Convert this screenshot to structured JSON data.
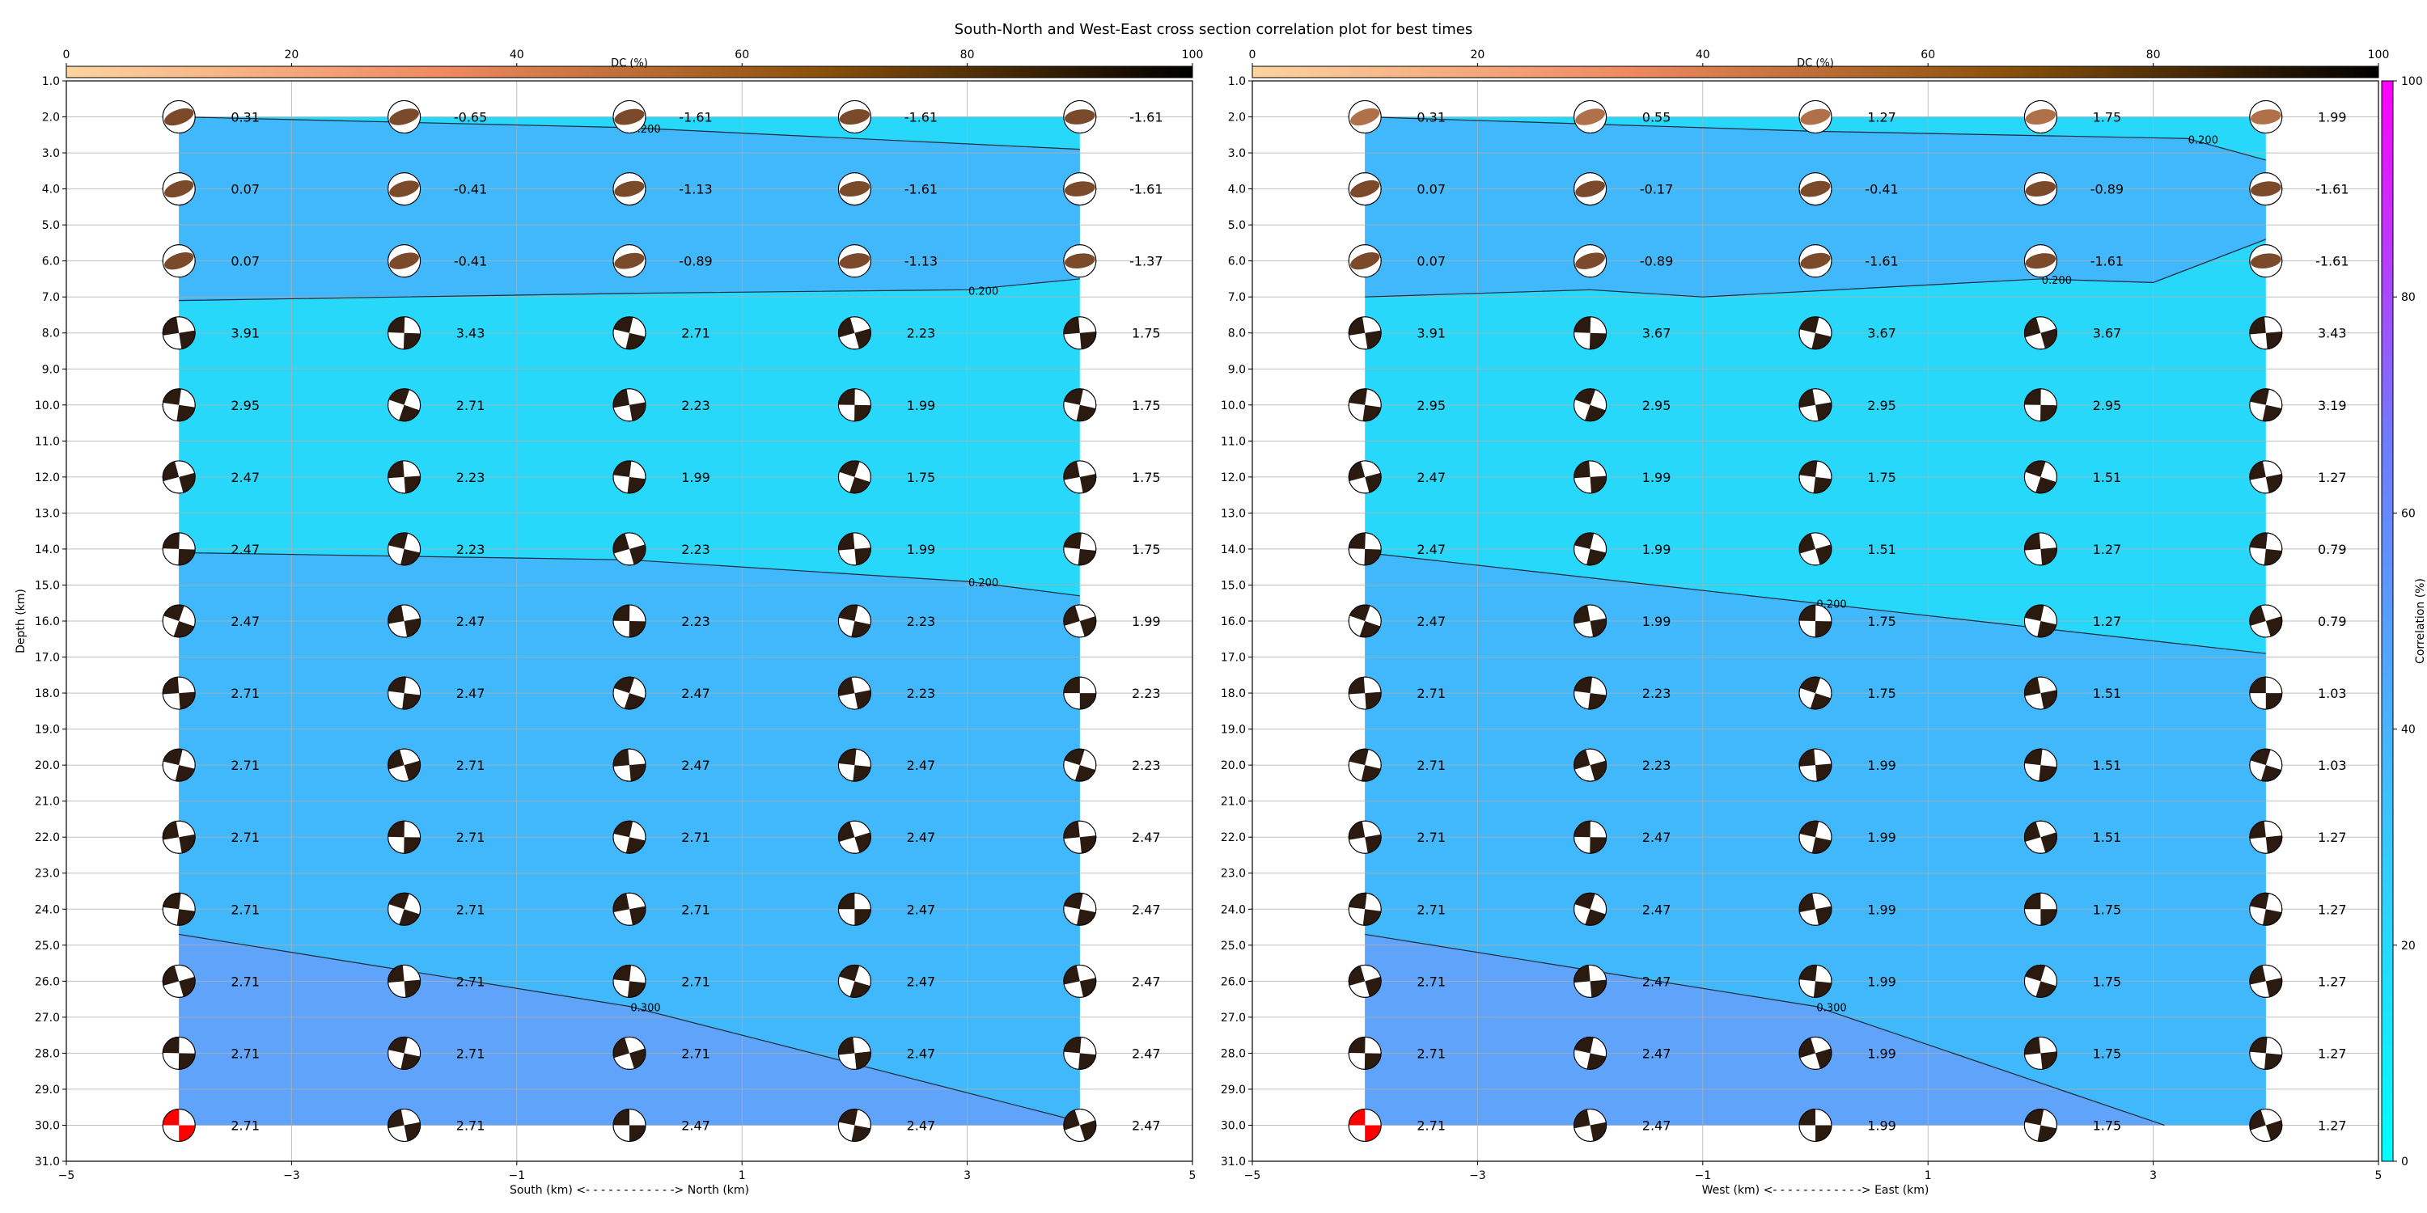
{
  "title": "South-North and West-East cross section correlation plot for best times",
  "dc_colorbar": {
    "label": "DC (%)",
    "ticks": [
      "0",
      "20",
      "40",
      "60",
      "80",
      "100"
    ],
    "colors": [
      "#fdd49e",
      "#ef8a62",
      "#8c510a",
      "#000000"
    ]
  },
  "corr_colorbar": {
    "label": "Correlation (%)",
    "ticks": [
      "0",
      "20",
      "40",
      "60",
      "80",
      "100"
    ],
    "colors": [
      "#00ffff",
      "#3ec1ff",
      "#6f7bff",
      "#ff00ff"
    ]
  },
  "chart_data": [
    {
      "type": "heatmap",
      "xlabel": "South (km) <- - - - - - - - - - - -> North (km)",
      "ylabel": "Depth (km)",
      "xlim": [
        -5,
        5
      ],
      "ylim": [
        31,
        1
      ],
      "x_ticks": [
        "−5",
        "−3",
        "−1",
        "1",
        "3",
        "5"
      ],
      "x_positions": [
        -4,
        -2,
        0,
        2,
        4
      ],
      "depths": [
        2,
        4,
        6,
        8,
        10,
        12,
        14,
        16,
        18,
        20,
        22,
        24,
        26,
        28,
        30
      ],
      "values": [
        [
          "0.31",
          "-0.65",
          "-1.61",
          "-1.61",
          "-1.61"
        ],
        [
          "0.07",
          "-0.41",
          "-1.13",
          "-1.61",
          "-1.61"
        ],
        [
          "0.07",
          "-0.41",
          "-0.89",
          "-1.13",
          "-1.37"
        ],
        [
          "3.91",
          "3.43",
          "2.71",
          "2.23",
          "1.75"
        ],
        [
          "2.95",
          "2.71",
          "2.23",
          "1.99",
          "1.75"
        ],
        [
          "2.47",
          "2.23",
          "1.99",
          "1.75",
          "1.75"
        ],
        [
          "2.47",
          "2.23",
          "2.23",
          "1.99",
          "1.75"
        ],
        [
          "2.47",
          "2.47",
          "2.23",
          "2.23",
          "1.99"
        ],
        [
          "2.71",
          "2.47",
          "2.47",
          "2.23",
          "2.23"
        ],
        [
          "2.71",
          "2.71",
          "2.47",
          "2.47",
          "2.23"
        ],
        [
          "2.71",
          "2.71",
          "2.71",
          "2.47",
          "2.47"
        ],
        [
          "2.71",
          "2.71",
          "2.71",
          "2.47",
          "2.47"
        ],
        [
          "2.71",
          "2.71",
          "2.71",
          "2.47",
          "2.47"
        ],
        [
          "2.71",
          "2.71",
          "2.71",
          "2.47",
          "2.47"
        ],
        [
          "2.71",
          "2.71",
          "2.47",
          "2.47",
          "2.47"
        ]
      ],
      "contours": [
        {
          "label": "0.200",
          "line": [
            [
              -4,
              2.0
            ],
            [
              0,
              2.3
            ],
            [
              4,
              2.9
            ]
          ]
        },
        {
          "label": "0.200",
          "line": [
            [
              -4,
              7.1
            ],
            [
              0,
              6.9
            ],
            [
              3,
              6.8
            ],
            [
              4,
              6.5
            ]
          ]
        },
        {
          "label": "0.200",
          "line": [
            [
              -4,
              14.1
            ],
            [
              0,
              14.3
            ],
            [
              3,
              14.9
            ],
            [
              4,
              15.3
            ]
          ]
        },
        {
          "label": "0.300",
          "line": [
            [
              -4,
              24.7
            ],
            [
              0,
              26.7
            ],
            [
              4,
              29.9
            ]
          ]
        }
      ],
      "best_marker": [
        0,
        14
      ]
    },
    {
      "type": "heatmap",
      "xlabel": "West (km) <- - - - - - - - - - - -> East (km)",
      "ylabel": "",
      "xlim": [
        -5,
        5
      ],
      "ylim": [
        31,
        1
      ],
      "x_ticks": [
        "−5",
        "−3",
        "−1",
        "1",
        "3",
        "5"
      ],
      "x_positions": [
        -4,
        -2,
        0,
        2,
        4
      ],
      "depths": [
        2,
        4,
        6,
        8,
        10,
        12,
        14,
        16,
        18,
        20,
        22,
        24,
        26,
        28,
        30
      ],
      "values": [
        [
          "0.31",
          "0.55",
          "1.27",
          "1.75",
          "1.99"
        ],
        [
          "0.07",
          "-0.17",
          "-0.41",
          "-0.89",
          "-1.61"
        ],
        [
          "0.07",
          "-0.89",
          "-1.61",
          "-1.61",
          "-1.61"
        ],
        [
          "3.91",
          "3.67",
          "3.67",
          "3.67",
          "3.43"
        ],
        [
          "2.95",
          "2.95",
          "2.95",
          "2.95",
          "3.19"
        ],
        [
          "2.47",
          "1.99",
          "1.75",
          "1.51",
          "1.27"
        ],
        [
          "2.47",
          "1.99",
          "1.51",
          "1.27",
          "0.79"
        ],
        [
          "2.47",
          "1.99",
          "1.75",
          "1.27",
          "0.79"
        ],
        [
          "2.71",
          "2.23",
          "1.75",
          "1.51",
          "1.03"
        ],
        [
          "2.71",
          "2.23",
          "1.99",
          "1.51",
          "1.03"
        ],
        [
          "2.71",
          "2.47",
          "1.99",
          "1.51",
          "1.27"
        ],
        [
          "2.71",
          "2.47",
          "1.99",
          "1.75",
          "1.27"
        ],
        [
          "2.71",
          "2.47",
          "1.99",
          "1.75",
          "1.27"
        ],
        [
          "2.71",
          "2.47",
          "1.99",
          "1.75",
          "1.27"
        ],
        [
          "2.71",
          "2.47",
          "1.99",
          "1.75",
          "1.27"
        ]
      ],
      "contours": [
        {
          "label": "0.200",
          "line": [
            [
              -4,
              2.0
            ],
            [
              0,
              2.4
            ],
            [
              3.3,
              2.6
            ],
            [
              4,
              3.2
            ]
          ]
        },
        {
          "label": "0.200",
          "line": [
            [
              -4,
              7.0
            ],
            [
              -2,
              6.8
            ],
            [
              -1,
              7.0
            ],
            [
              2,
              6.5
            ],
            [
              3,
              6.6
            ],
            [
              4,
              5.4
            ]
          ]
        },
        {
          "label": "0.200",
          "line": [
            [
              -4,
              14.1
            ],
            [
              0,
              15.5
            ],
            [
              4,
              16.9
            ]
          ]
        },
        {
          "label": "0.300",
          "line": [
            [
              -4,
              24.7
            ],
            [
              0,
              26.7
            ],
            [
              3.1,
              30.0
            ]
          ]
        }
      ],
      "best_marker": [
        0,
        14
      ]
    }
  ],
  "depth_ticks": [
    "1.0",
    "2.0",
    "3.0",
    "4.0",
    "5.0",
    "6.0",
    "7.0",
    "8.0",
    "9.0",
    "10.0",
    "11.0",
    "12.0",
    "13.0",
    "14.0",
    "15.0",
    "16.0",
    "17.0",
    "18.0",
    "19.0",
    "20.0",
    "21.0",
    "22.0",
    "23.0",
    "24.0",
    "25.0",
    "26.0",
    "27.0",
    "28.0",
    "29.0",
    "30.0",
    "31.0"
  ],
  "fill_colors": {
    "low": "#27d8fb",
    "mid": "#40b8fb",
    "high": "#5fa4fa",
    "best_beachball": "#ff0000"
  }
}
